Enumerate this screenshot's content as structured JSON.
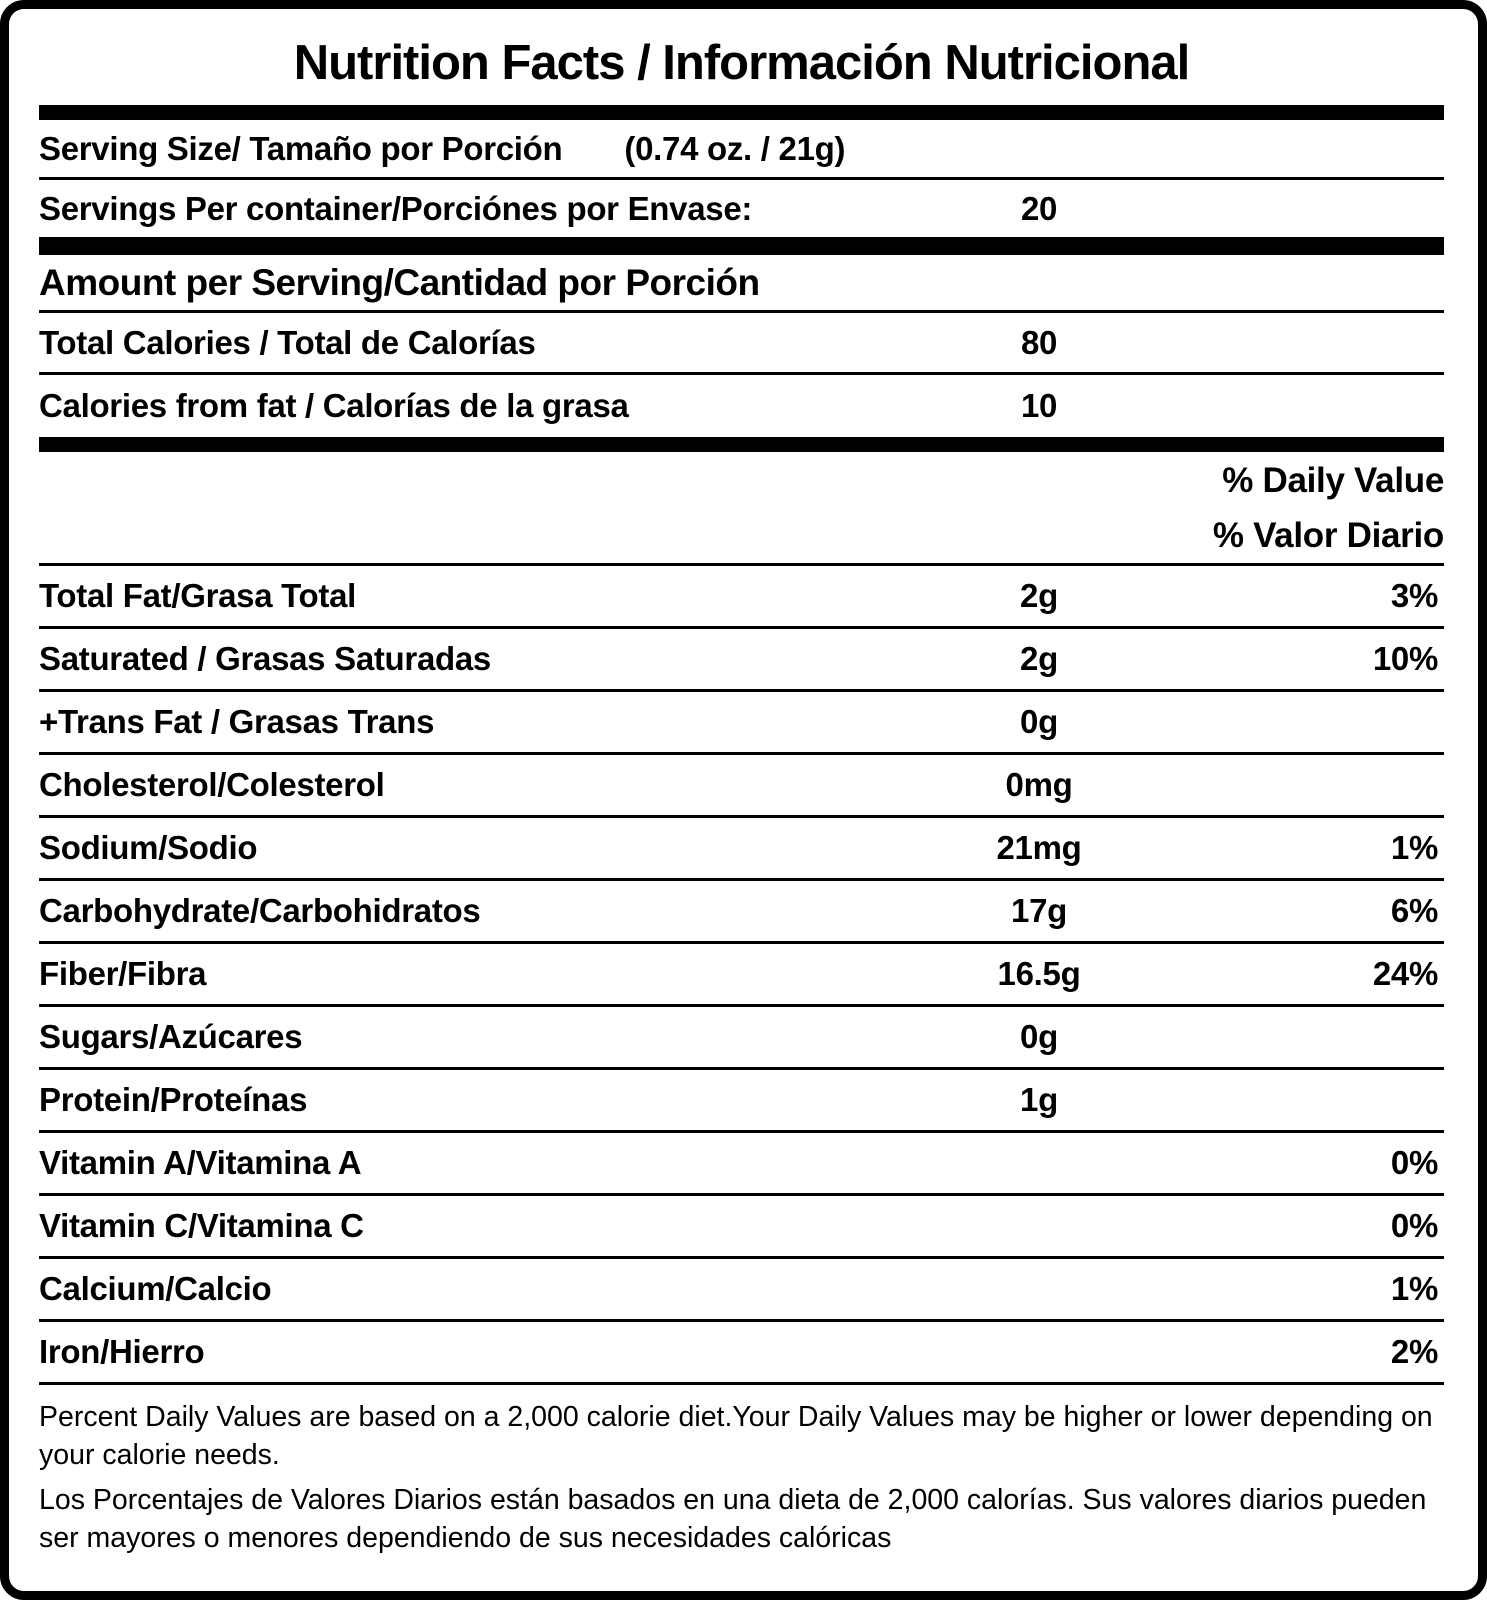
{
  "title": "Nutrition Facts / Información Nutricional",
  "serving": {
    "size_label": "Serving Size/ Tamaño por Porción",
    "size_value": "(0.74 oz. / 21g)",
    "per_container_label": "Servings Per container/Porciónes por Envase:",
    "per_container_value": "20"
  },
  "amount_header": "Amount per Serving/Cantidad por Porción",
  "calories": [
    {
      "label": "Total Calories / Total de Calorías",
      "value": "80"
    },
    {
      "label": "Calories from fat / Calorías de la grasa",
      "value": "10"
    }
  ],
  "daily_value_header": {
    "en": "% Daily Value",
    "es": "% Valor Diario"
  },
  "nutrients": [
    {
      "label": "Total Fat/Grasa Total",
      "amount": "2g",
      "dv": "3%"
    },
    {
      "label": "Saturated / Grasas Saturadas",
      "amount": "2g",
      "dv": "10%"
    },
    {
      "label": "+Trans Fat / Grasas Trans",
      "amount": "0g",
      "dv": ""
    },
    {
      "label": "Cholesterol/Colesterol",
      "amount": "0mg",
      "dv": ""
    },
    {
      "label": "Sodium/Sodio",
      "amount": "21mg",
      "dv": "1%"
    },
    {
      "label": "Carbohydrate/Carbohidratos",
      "amount": "17g",
      "dv": "6%"
    },
    {
      "label": "Fiber/Fibra",
      "amount": "16.5g",
      "dv": "24%"
    },
    {
      "label": "Sugars/Azúcares",
      "amount": "0g",
      "dv": ""
    },
    {
      "label": "Protein/Proteínas",
      "amount": "1g",
      "dv": ""
    },
    {
      "label": "Vitamin A/Vitamina A",
      "amount": "",
      "dv": "0%"
    },
    {
      "label": "Vitamin C/Vitamina C",
      "amount": "",
      "dv": "0%"
    },
    {
      "label": "Calcium/Calcio",
      "amount": "",
      "dv": "1%"
    },
    {
      "label": "Iron/Hierro",
      "amount": "",
      "dv": "2%"
    }
  ],
  "footnote": {
    "en": "Percent Daily Values are based on a 2,000 calorie diet.Your Daily Values may be higher or lower depending on your calorie needs.",
    "es": "Los Porcentajes de Valores Diarios están basados en una dieta de 2,000 calorías. Sus valores diarios pueden ser mayores o menores dependiendo de sus necesidades calóricas"
  },
  "colors": {
    "text": "#000000",
    "background": "#ffffff"
  }
}
